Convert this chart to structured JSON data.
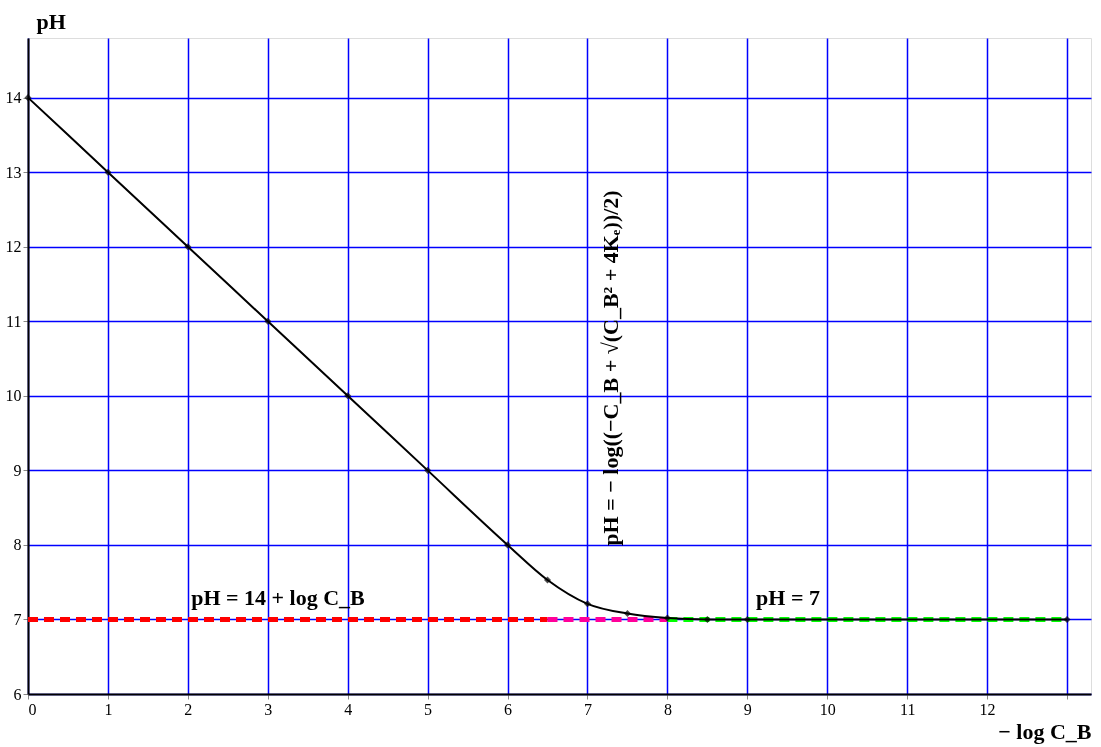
{
  "chart_data": {
    "type": "line",
    "xlabel": "− log C_B",
    "ylabel": "pH",
    "xlim": [
      0,
      13.3
    ],
    "ylim": [
      6,
      14.8
    ],
    "xticks": [
      0,
      1,
      2,
      3,
      4,
      5,
      6,
      7,
      8,
      9,
      10,
      11,
      12,
      {
        "value": 13,
        "label": null
      }
    ],
    "yticks": [
      6,
      7,
      8,
      9,
      10,
      11,
      12,
      13,
      14
    ],
    "grid": true,
    "series": [
      {
        "color": "#000000",
        "marker": "diamond",
        "line_style": "solid",
        "x": [
          0,
          1,
          2,
          3,
          4,
          5,
          6,
          6.5,
          7,
          7.5,
          8,
          8.5,
          9,
          13
        ],
        "values": [
          14,
          13,
          12,
          11,
          10,
          9,
          8,
          7.53,
          7.21,
          7.08,
          7.02,
          7.0,
          7.0,
          7.0
        ]
      },
      {
        "color": "#ff0000",
        "marker": "none",
        "line_style": "dashed",
        "x": [
          0,
          6.5
        ],
        "values": [
          7,
          7
        ]
      },
      {
        "color": "#ff0099",
        "marker": "none",
        "line_style": "dashed",
        "x": [
          6.5,
          8
        ],
        "values": [
          7,
          7
        ]
      },
      {
        "color": "#00ff00",
        "marker": "none",
        "line_style": "dashed",
        "x": [
          8,
          13
        ],
        "values": [
          7,
          7
        ]
      }
    ],
    "annotations": [
      "pH = 14 + log C_B",
      "pH = 7",
      "pH = − log((−C_B + √(C_B² + 4Kₑ))/2)"
    ]
  }
}
